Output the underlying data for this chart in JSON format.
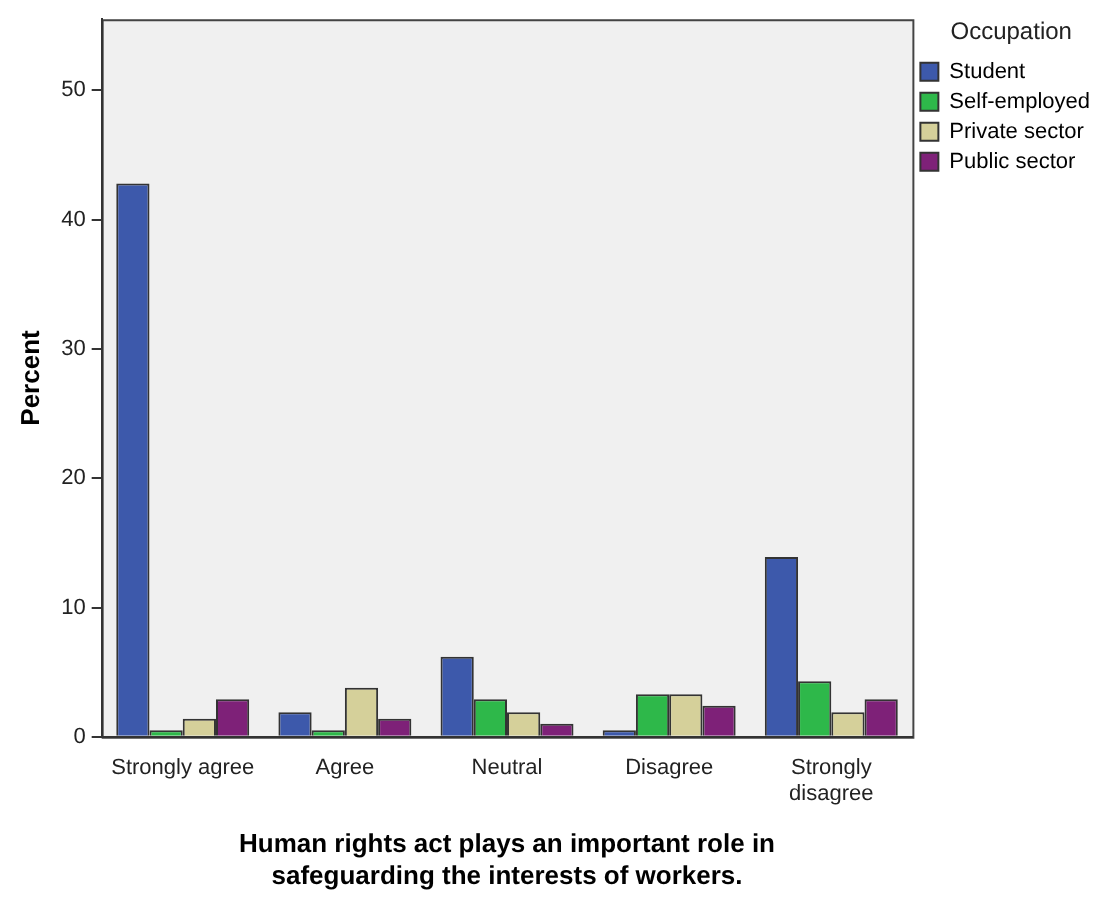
{
  "chart_data": {
    "type": "bar",
    "xlabel": "Human rights act plays an important role in\nsafeguarding the interests of workers.",
    "ylabel": "Percent",
    "legend_title": "Occupation",
    "categories": [
      "Strongly agree",
      "Agree",
      "Neutral",
      "Disagree",
      "Strongly disagree"
    ],
    "series": [
      {
        "name": "Student",
        "color": "#3d59ab",
        "values": [
          42.8,
          1.9,
          6.2,
          0.5,
          13.9
        ]
      },
      {
        "name": "Self-employed",
        "color": "#2eb84a",
        "values": [
          0.5,
          0.5,
          2.9,
          3.3,
          4.3
        ]
      },
      {
        "name": "Private sector",
        "color": "#d5d09a",
        "values": [
          1.4,
          3.8,
          1.9,
          3.3,
          1.9
        ]
      },
      {
        "name": "Public sector",
        "color": "#7e2178",
        "values": [
          2.9,
          1.4,
          1.0,
          2.4,
          2.9
        ]
      }
    ],
    "ylim": [
      0,
      55.5
    ],
    "yticks": [
      0,
      10,
      20,
      30,
      40,
      50
    ],
    "grid": false,
    "legend": "top right"
  }
}
